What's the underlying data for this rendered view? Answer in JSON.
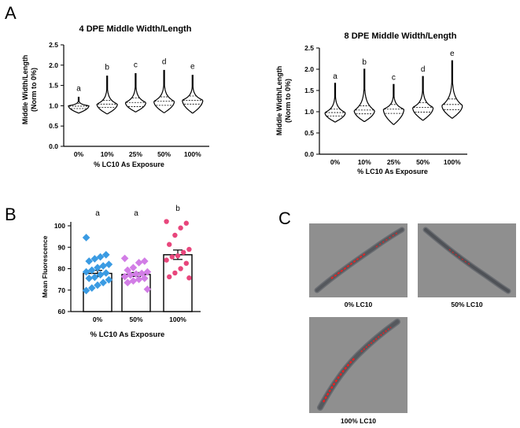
{
  "panels": {
    "a": "A",
    "b": "B",
    "c": "C"
  },
  "colors": {
    "blue": "#3a9be3",
    "violet": "#d27de6",
    "pink": "#e8467c",
    "red": "#ff1a1a",
    "worm": "#585b60",
    "scope_bg": "#8f8f8f"
  },
  "chart_data": [
    {
      "id": "a-left",
      "type": "violin",
      "title": "4 DPE Middle Width/Length",
      "ylabel": "Middle Width/Length",
      "ylabel2": "(Norm to 0%)",
      "xlabel": "% LC10 As Exposure",
      "categories": [
        "0%",
        "10%",
        "25%",
        "50%",
        "100%"
      ],
      "ylim": [
        0,
        2.5
      ],
      "yticks": [
        "0.0",
        "0.5",
        "1.0",
        "1.5",
        "2.0",
        "2.5"
      ],
      "series": [
        {
          "name": "0%",
          "min": 0.82,
          "q1": 0.93,
          "median": 0.99,
          "q3": 1.06,
          "max": 1.21,
          "peak": 1.0,
          "letter": "a"
        },
        {
          "name": "10%",
          "min": 0.8,
          "q1": 0.96,
          "median": 1.04,
          "q3": 1.13,
          "max": 1.73,
          "peak": 1.04,
          "letter": "b"
        },
        {
          "name": "25%",
          "min": 0.85,
          "q1": 0.98,
          "median": 1.08,
          "q3": 1.19,
          "max": 1.79,
          "peak": 1.08,
          "letter": "c"
        },
        {
          "name": "50%",
          "min": 0.83,
          "q1": 1.01,
          "median": 1.11,
          "q3": 1.22,
          "max": 1.87,
          "peak": 1.11,
          "letter": "d"
        },
        {
          "name": "100%",
          "min": 0.82,
          "q1": 1.04,
          "median": 1.13,
          "q3": 1.24,
          "max": 1.75,
          "peak": 1.14,
          "letter": "e"
        }
      ]
    },
    {
      "id": "a-right",
      "type": "violin",
      "title": "8 DPE Middle Width/Length",
      "ylabel": "Middle Width/Length",
      "ylabel2": "(Norm to 0%)",
      "xlabel": "% LC10 As Exposure",
      "categories": [
        "0%",
        "10%",
        "25%",
        "50%",
        "100%"
      ],
      "ylim": [
        0,
        2.5
      ],
      "yticks": [
        "0.0",
        "0.5",
        "1.0",
        "1.5",
        "2.0",
        "2.5"
      ],
      "series": [
        {
          "name": "0%",
          "min": 0.76,
          "q1": 0.9,
          "median": 0.98,
          "q3": 1.06,
          "max": 1.67,
          "peak": 0.98,
          "letter": "a"
        },
        {
          "name": "10%",
          "min": 0.77,
          "q1": 0.95,
          "median": 1.04,
          "q3": 1.14,
          "max": 2.0,
          "peak": 1.03,
          "letter": "b"
        },
        {
          "name": "25%",
          "min": 0.7,
          "q1": 0.96,
          "median": 1.06,
          "q3": 1.17,
          "max": 1.64,
          "peak": 1.06,
          "letter": "c"
        },
        {
          "name": "50%",
          "min": 0.8,
          "q1": 0.99,
          "median": 1.1,
          "q3": 1.21,
          "max": 1.83,
          "peak": 1.1,
          "letter": "d"
        },
        {
          "name": "100%",
          "min": 0.85,
          "q1": 1.05,
          "median": 1.17,
          "q3": 1.3,
          "max": 2.2,
          "peak": 1.15,
          "letter": "e"
        }
      ]
    },
    {
      "id": "b",
      "type": "bar",
      "ylabel": "Mean Fluorescence",
      "xlabel": "% LC10 As Exposure",
      "categories": [
        "0%",
        "50%",
        "100%"
      ],
      "ylim": [
        60,
        100
      ],
      "yticks": [
        "60",
        "70",
        "80",
        "90",
        "100"
      ],
      "series": [
        {
          "name": "0%",
          "mean": 77.8,
          "sem": 1.4,
          "letter": "a",
          "color": "#3a9be3",
          "points": [
            94.5,
            86.5,
            85.5,
            84.6,
            83.5,
            82.0,
            81.3,
            80.5,
            79.3,
            78.5,
            78.0,
            77.2,
            76.0,
            75.5,
            74.8,
            73.5,
            72.3,
            71.0,
            69.8
          ]
        },
        {
          "name": "50%",
          "mean": 77.3,
          "sem": 0.9,
          "letter": "a",
          "color": "#d27de6",
          "points": [
            84.8,
            83.5,
            82.8,
            80.5,
            79.3,
            78.5,
            77.8,
            77.5,
            77.0,
            76.3,
            75.5,
            75.0,
            74.3,
            73.5,
            70.4
          ]
        },
        {
          "name": "100%",
          "mean": 86.5,
          "sem": 2.2,
          "letter": "b",
          "color": "#e8467c",
          "points": [
            102.0,
            101.2,
            99.0,
            95.6,
            91.3,
            89.0,
            87.6,
            86.0,
            85.5,
            84.0,
            82.5,
            80.0,
            78.0,
            76.2,
            75.7
          ]
        }
      ]
    }
  ],
  "images": [
    {
      "caption": "0% LC10"
    },
    {
      "caption": "50% LC10"
    },
    {
      "caption": "100% LC10"
    }
  ]
}
